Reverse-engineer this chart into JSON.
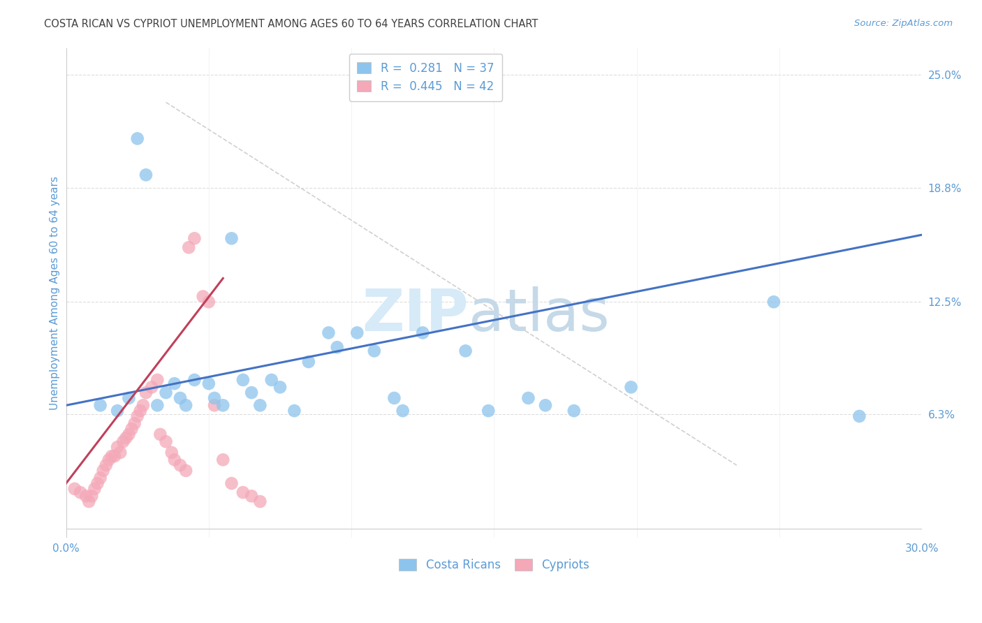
{
  "title": "COSTA RICAN VS CYPRIOT UNEMPLOYMENT AMONG AGES 60 TO 64 YEARS CORRELATION CHART",
  "source": "Source: ZipAtlas.com",
  "ylabel": "Unemployment Among Ages 60 to 64 years",
  "xlim": [
    0.0,
    0.3
  ],
  "ylim": [
    -0.005,
    0.265
  ],
  "xticks": [
    0.0,
    0.05,
    0.1,
    0.15,
    0.2,
    0.25,
    0.3
  ],
  "xticklabels": [
    "0.0%",
    "",
    "",
    "",
    "",
    "",
    "30.0%"
  ],
  "ytick_values": [
    0.0,
    0.063,
    0.125,
    0.188,
    0.25
  ],
  "ytick_labels": [
    "",
    "6.3%",
    "12.5%",
    "18.8%",
    "25.0%"
  ],
  "legend1_labels": [
    "R =  0.281   N = 37",
    "R =  0.445   N = 42"
  ],
  "legend1_colors": [
    "#8DC4ED",
    "#F4A8B8"
  ],
  "legend2_labels": [
    "Costa Ricans",
    "Cypriots"
  ],
  "legend2_colors": [
    "#8DC4ED",
    "#F4A8B8"
  ],
  "blue_scatter_x": [
    0.012,
    0.018,
    0.022,
    0.025,
    0.028,
    0.032,
    0.035,
    0.038,
    0.04,
    0.042,
    0.045,
    0.05,
    0.052,
    0.055,
    0.058,
    0.062,
    0.065,
    0.068,
    0.072,
    0.075,
    0.08,
    0.085,
    0.092,
    0.095,
    0.102,
    0.108,
    0.115,
    0.118,
    0.125,
    0.14,
    0.148,
    0.162,
    0.168,
    0.178,
    0.198,
    0.248,
    0.278
  ],
  "blue_scatter_y": [
    0.068,
    0.065,
    0.072,
    0.215,
    0.195,
    0.068,
    0.075,
    0.08,
    0.072,
    0.068,
    0.082,
    0.08,
    0.072,
    0.068,
    0.16,
    0.082,
    0.075,
    0.068,
    0.082,
    0.078,
    0.065,
    0.092,
    0.108,
    0.1,
    0.108,
    0.098,
    0.072,
    0.065,
    0.108,
    0.098,
    0.065,
    0.072,
    0.068,
    0.065,
    0.078,
    0.125,
    0.062
  ],
  "pink_scatter_x": [
    0.003,
    0.005,
    0.007,
    0.008,
    0.009,
    0.01,
    0.011,
    0.012,
    0.013,
    0.014,
    0.015,
    0.016,
    0.017,
    0.018,
    0.019,
    0.02,
    0.021,
    0.022,
    0.023,
    0.024,
    0.025,
    0.026,
    0.027,
    0.028,
    0.03,
    0.032,
    0.033,
    0.035,
    0.037,
    0.038,
    0.04,
    0.042,
    0.043,
    0.045,
    0.048,
    0.05,
    0.052,
    0.055,
    0.058,
    0.062,
    0.065,
    0.068
  ],
  "pink_scatter_y": [
    0.022,
    0.02,
    0.018,
    0.015,
    0.018,
    0.022,
    0.025,
    0.028,
    0.032,
    0.035,
    0.038,
    0.04,
    0.04,
    0.045,
    0.042,
    0.048,
    0.05,
    0.052,
    0.055,
    0.058,
    0.062,
    0.065,
    0.068,
    0.075,
    0.078,
    0.082,
    0.052,
    0.048,
    0.042,
    0.038,
    0.035,
    0.032,
    0.155,
    0.16,
    0.128,
    0.125,
    0.068,
    0.038,
    0.025,
    0.02,
    0.018,
    0.015
  ],
  "blue_line_x": [
    0.0,
    0.3
  ],
  "blue_line_y": [
    0.068,
    0.162
  ],
  "pink_line_x": [
    0.0,
    0.055
  ],
  "pink_line_y": [
    0.025,
    0.138
  ],
  "diag_line_x": [
    0.035,
    0.235
  ],
  "diag_line_y": [
    0.235,
    0.035
  ],
  "blue_color": "#8DC4ED",
  "pink_color": "#F4A8B8",
  "blue_line_color": "#4472C4",
  "pink_line_color": "#C0405A",
  "diag_color": "#D0D0D0",
  "bg_color": "#FFFFFF",
  "grid_color": "#DDDDDD",
  "text_color": "#5B9BD5",
  "title_color": "#404040",
  "watermark_line1": "ZIP",
  "watermark_line2": "atlas",
  "watermark_color": "#D6EAF8"
}
